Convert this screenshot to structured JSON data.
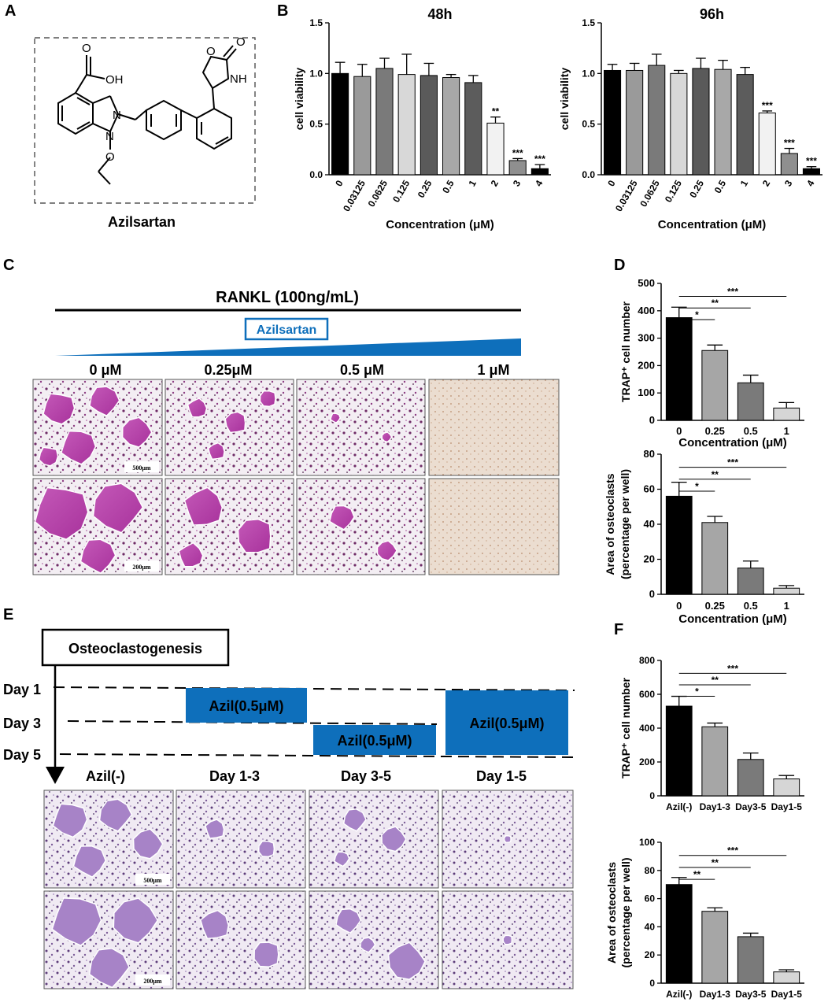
{
  "panels": {
    "a": "A",
    "b": "B",
    "c": "C",
    "d": "D",
    "e": "E",
    "f": "F"
  },
  "panelA": {
    "compound": "Azilsartan",
    "atoms": {
      "o1": "O",
      "oh": "OH",
      "o2": "O",
      "o3": "O",
      "nh": "NH",
      "n1": "N",
      "n2": "N",
      "o4": "O"
    }
  },
  "panelC": {
    "rankl": "RANKL  (100ng/mL)",
    "drug": "Azilsartan",
    "conditions": [
      "0 μM",
      "0.25μM",
      "0.5 μM",
      "1 μM"
    ],
    "scale_top": "500μm",
    "scale_bottom": "200μm"
  },
  "panelE": {
    "box": "Osteoclastogenesis",
    "days": [
      "Day 1",
      "Day 3",
      "Day 5"
    ],
    "treatments": [
      "Azil(0.5μM)",
      "Azil(0.5μM)",
      "Azil(0.5μM)"
    ],
    "conditions": [
      "Azil(-)",
      "Day 1-3",
      "Day 3-5",
      "Day 1-5"
    ],
    "scale_top": "500μm",
    "scale_bottom": "200μm"
  },
  "colors": {
    "blue": "#0e6fbb",
    "osteoclast_pink": "#b23aa6",
    "osteoclast_purple": "#9a6bbd",
    "well_beige": "#e8d6c6"
  },
  "chart_data": [
    {
      "id": "b48",
      "panel": "B",
      "type": "bar",
      "title": "48h",
      "xlabel": "Concentration  (μM)",
      "ylabel": "cell viability",
      "ylim": [
        0,
        1.5
      ],
      "yticks": [
        "0.0",
        "0.5",
        "1.0",
        "1.5"
      ],
      "categories": [
        "0",
        "0.03125",
        "0.0625",
        "0.125",
        "0.25",
        "0.5",
        "1",
        "2",
        "3",
        "4"
      ],
      "values": [
        1.0,
        0.97,
        1.05,
        0.99,
        0.98,
        0.96,
        0.91,
        0.51,
        0.14,
        0.06
      ],
      "errors": [
        0.11,
        0.12,
        0.1,
        0.2,
        0.12,
        0.03,
        0.07,
        0.06,
        0.02,
        0.04
      ],
      "bar_colors": [
        "#000000",
        "#9a9a9a",
        "#7a7a7a",
        "#d8d8d8",
        "#5a5a5a",
        "#a8a8a8",
        "#5c5c5c",
        "#f2f2f2",
        "#8f8f8f",
        "#000000"
      ],
      "significance": [
        "",
        "",
        "",
        "",
        "",
        "",
        "",
        "**",
        "***",
        "***"
      ]
    },
    {
      "id": "b96",
      "panel": "B",
      "type": "bar",
      "title": "96h",
      "xlabel": "Concentration  (μM)",
      "ylabel": "cell viability",
      "ylim": [
        0,
        1.5
      ],
      "yticks": [
        "0.0",
        "0.5",
        "1.0",
        "1.5"
      ],
      "categories": [
        "0",
        "0.03125",
        "0.0625",
        "0.125",
        "0.25",
        "0.5",
        "1",
        "2",
        "3",
        "4"
      ],
      "values": [
        1.03,
        1.03,
        1.08,
        1.0,
        1.05,
        1.04,
        0.99,
        0.61,
        0.21,
        0.06
      ],
      "errors": [
        0.06,
        0.07,
        0.11,
        0.03,
        0.1,
        0.09,
        0.07,
        0.02,
        0.05,
        0.02
      ],
      "bar_colors": [
        "#000000",
        "#9a9a9a",
        "#7a7a7a",
        "#d8d8d8",
        "#5a5a5a",
        "#a8a8a8",
        "#5c5c5c",
        "#f2f2f2",
        "#8f8f8f",
        "#000000"
      ],
      "significance": [
        "",
        "",
        "",
        "",
        "",
        "",
        "",
        "***",
        "***",
        "***"
      ]
    },
    {
      "id": "d1",
      "panel": "D",
      "type": "bar",
      "xlabel": "Concentration  (μM)",
      "ylabel": "TRAP⁺ cell number",
      "ylim": [
        0,
        500
      ],
      "yticks": [
        "0",
        "100",
        "200",
        "300",
        "400",
        "500"
      ],
      "categories": [
        "0",
        "0.25",
        "0.5",
        "1"
      ],
      "values": [
        375,
        255,
        137,
        45
      ],
      "errors": [
        38,
        20,
        28,
        20
      ],
      "bar_colors": [
        "#000000",
        "#a6a6a6",
        "#7a7a7a",
        "#d6d6d6"
      ],
      "brackets": [
        "*",
        "**",
        "***"
      ]
    },
    {
      "id": "d2",
      "panel": "D",
      "type": "bar",
      "xlabel": "Concentration  (μM)",
      "ylabel": [
        "Area of osteoclasts",
        "(percentage per well)"
      ],
      "ylim": [
        0,
        80
      ],
      "yticks": [
        "0",
        "20",
        "40",
        "60",
        "80"
      ],
      "categories": [
        "0",
        "0.25",
        "0.5",
        "1"
      ],
      "values": [
        56,
        41,
        15,
        3.5
      ],
      "errors": [
        8,
        3.5,
        4,
        1.5
      ],
      "bar_colors": [
        "#000000",
        "#a6a6a6",
        "#7a7a7a",
        "#d6d6d6"
      ],
      "brackets": [
        "*",
        "**",
        "***"
      ]
    },
    {
      "id": "f1",
      "panel": "F",
      "type": "bar",
      "xlabel": "",
      "ylabel": "TRAP⁺ cell number",
      "ylim": [
        0,
        800
      ],
      "yticks": [
        "0",
        "200",
        "400",
        "600",
        "800"
      ],
      "categories": [
        "Azil(-)",
        "Day1-3",
        "Day3-5",
        "Day1-5"
      ],
      "values": [
        530,
        408,
        215,
        100
      ],
      "errors": [
        58,
        22,
        38,
        20
      ],
      "bar_colors": [
        "#000000",
        "#a6a6a6",
        "#7a7a7a",
        "#d6d6d6"
      ],
      "brackets": [
        "*",
        "**",
        "***"
      ]
    },
    {
      "id": "f2",
      "panel": "F",
      "type": "bar",
      "xlabel": "",
      "ylabel": [
        "Area of osteoclasts",
        "(percentage per well)"
      ],
      "ylim": [
        0,
        100
      ],
      "yticks": [
        "0",
        "20",
        "40",
        "60",
        "80",
        "100"
      ],
      "categories": [
        "Azil(-)",
        "Day1-3",
        "Day3-5",
        "Day1-5"
      ],
      "values": [
        70,
        51,
        33,
        8
      ],
      "errors": [
        5,
        2.5,
        2.5,
        1.5
      ],
      "bar_colors": [
        "#000000",
        "#a6a6a6",
        "#7a7a7a",
        "#d6d6d6"
      ],
      "brackets": [
        "**",
        "**",
        "***"
      ]
    }
  ]
}
